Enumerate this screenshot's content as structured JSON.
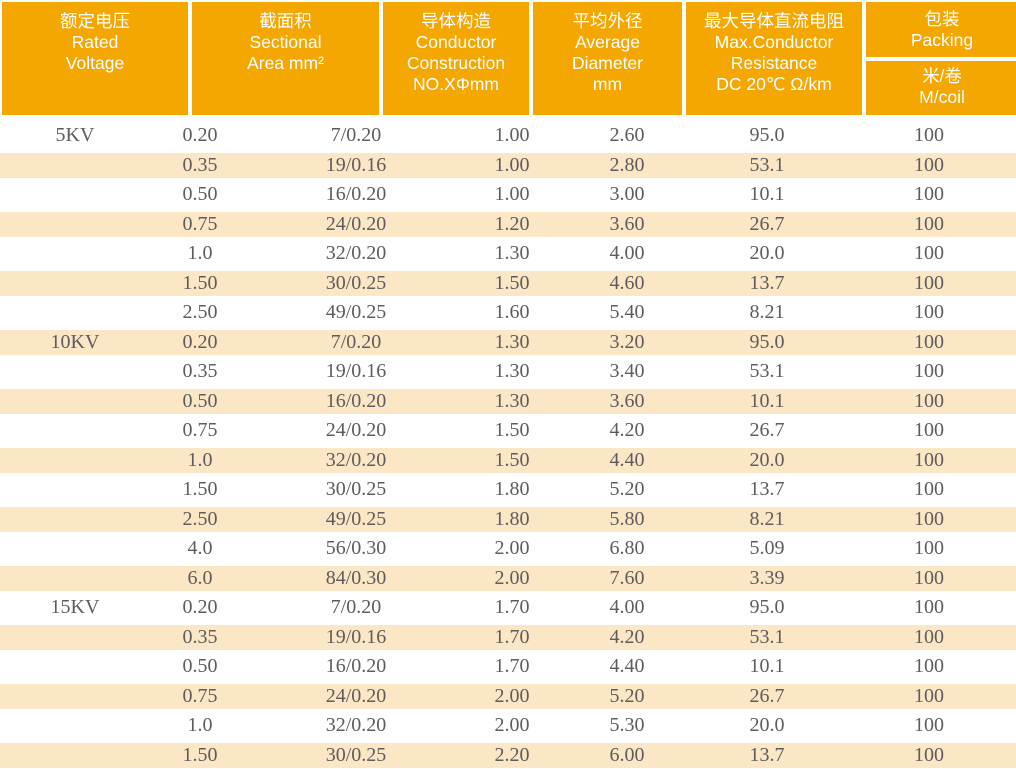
{
  "header": {
    "rated_voltage": "额定电压\nRated\nVoltage",
    "sectional_area": "截面积\nSectional\nArea mm²",
    "conductor_construction": "导体构造\nConductor\nConstruction\nNO.XΦmm",
    "average_diameter": "平均外径\nAverage\nDiameter\nmm",
    "max_resistance": "最大导体直流电阻\nMax.Conductor\nResistance\nDC 20℃ Ω/km",
    "packing": "包装\nPacking",
    "m_coil": "米/卷\nM/coil"
  },
  "colors": {
    "header_bg": "#F5A701",
    "header_text": "#FFFFFF",
    "stripe_bg": "#FBE6C5",
    "body_text": "#5E5C5C"
  },
  "table": {
    "rows": [
      [
        "5KV",
        "0.20",
        "7/0.20",
        "1.00",
        "2.60",
        "95.0",
        "100"
      ],
      [
        "",
        "0.35",
        "19/0.16",
        "1.00",
        "2.80",
        "53.1",
        "100"
      ],
      [
        "",
        "0.50",
        "16/0.20",
        "1.00",
        "3.00",
        "10.1",
        "100"
      ],
      [
        "",
        "0.75",
        "24/0.20",
        "1.20",
        "3.60",
        "26.7",
        "100"
      ],
      [
        "",
        "1.0",
        "32/0.20",
        "1.30",
        "4.00",
        "20.0",
        "100"
      ],
      [
        "",
        "1.50",
        "30/0.25",
        "1.50",
        "4.60",
        "13.7",
        "100"
      ],
      [
        "",
        "2.50",
        "49/0.25",
        "1.60",
        "5.40",
        "8.21",
        "100"
      ],
      [
        "10KV",
        "0.20",
        "7/0.20",
        "1.30",
        "3.20",
        "95.0",
        "100"
      ],
      [
        "",
        "0.35",
        "19/0.16",
        "1.30",
        "3.40",
        "53.1",
        "100"
      ],
      [
        "",
        "0.50",
        "16/0.20",
        "1.30",
        "3.60",
        "10.1",
        "100"
      ],
      [
        "",
        "0.75",
        "24/0.20",
        "1.50",
        "4.20",
        "26.7",
        "100"
      ],
      [
        "",
        "1.0",
        "32/0.20",
        "1.50",
        "4.40",
        "20.0",
        "100"
      ],
      [
        "",
        "1.50",
        "30/0.25",
        "1.80",
        "5.20",
        "13.7",
        "100"
      ],
      [
        "",
        "2.50",
        "49/0.25",
        "1.80",
        "5.80",
        "8.21",
        "100"
      ],
      [
        "",
        "4.0",
        "56/0.30",
        "2.00",
        "6.80",
        "5.09",
        "100"
      ],
      [
        "",
        "6.0",
        "84/0.30",
        "2.00",
        "7.60",
        "3.39",
        "100"
      ],
      [
        "15KV",
        "0.20",
        "7/0.20",
        "1.70",
        "4.00",
        "95.0",
        "100"
      ],
      [
        "",
        "0.35",
        "19/0.16",
        "1.70",
        "4.20",
        "53.1",
        "100"
      ],
      [
        "",
        "0.50",
        "16/0.20",
        "1.70",
        "4.40",
        "10.1",
        "100"
      ],
      [
        "",
        "0.75",
        "24/0.20",
        "2.00",
        "5.20",
        "26.7",
        "100"
      ],
      [
        "",
        "1.0",
        "32/0.20",
        "2.00",
        "5.30",
        "20.0",
        "100"
      ],
      [
        "",
        "1.50",
        "30/0.25",
        "2.20",
        "6.00",
        "13.7",
        "100"
      ]
    ]
  }
}
